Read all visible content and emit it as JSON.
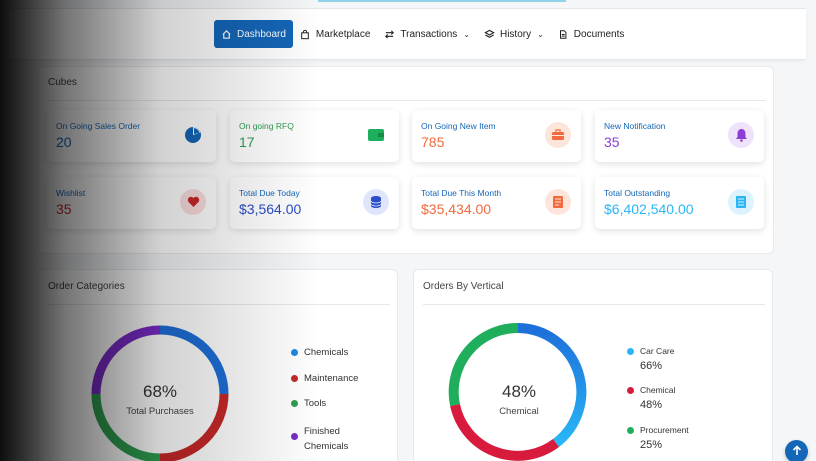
{
  "colors": {
    "primary": "#1466b8",
    "blue": "#1e88e5",
    "green": "#2e9e4f",
    "orange": "#f26a3d",
    "purple": "#8e3ed6",
    "red": "#c62828",
    "darkblue": "#2a3fc6",
    "cyan": "#29b6f6"
  },
  "nav": {
    "items": [
      {
        "label": "Dashboard",
        "icon": "home-icon",
        "active": true
      },
      {
        "label": "Marketplace",
        "icon": "shopping-bag-icon"
      },
      {
        "label": "Transactions",
        "icon": "swap-icon",
        "dropdown": true
      },
      {
        "label": "History",
        "icon": "layers-icon",
        "dropdown": true
      },
      {
        "label": "Documents",
        "icon": "document-icon"
      }
    ]
  },
  "cubes": {
    "title": "Cubes",
    "cards": [
      {
        "label": "On Going Sales Order",
        "value": "20",
        "icon": "pie-chart-icon"
      },
      {
        "label": "On going RFQ",
        "value": "17",
        "icon": "wallet-icon"
      },
      {
        "label": "On Going New Item",
        "value": "785",
        "icon": "briefcase-icon"
      },
      {
        "label": "New Notification",
        "value": "35",
        "icon": "bell-icon"
      },
      {
        "label": "Wishlist",
        "value": "35",
        "icon": "heart-icon"
      },
      {
        "label": "Total Due Today",
        "value": "$3,564.00",
        "icon": "coins-icon"
      },
      {
        "label": "Total Due This Month",
        "value": "$35,434.00",
        "icon": "invoice-icon"
      },
      {
        "label": "Total Outstanding",
        "value": "$6,402,540.00",
        "icon": "receipt-icon"
      }
    ]
  },
  "order_categories": {
    "title": "Order Categories",
    "center_value": "68%",
    "center_label": "Total Purchases",
    "legend": [
      {
        "label": "Chemicals",
        "color": "#1e6fd9"
      },
      {
        "label": "Maintenance",
        "color": "#c62828"
      },
      {
        "label": "Tools",
        "color": "#2e9e4f"
      },
      {
        "label": "Finished Chemicals",
        "color": "#7b2bc9"
      }
    ]
  },
  "orders_by_vertical": {
    "title": "Orders By Vertical",
    "center_value": "48%",
    "center_label": "Chemical",
    "legend": [
      {
        "label": "Car Care",
        "value": "66%",
        "color": "#29b6f6"
      },
      {
        "label": "Chemical",
        "value": "48%",
        "color": "#d81b3c"
      },
      {
        "label": "Procurement",
        "value": "25%",
        "color": "#1fae5b"
      }
    ]
  },
  "scroll_top": {
    "icon": "arrow-up-icon"
  }
}
